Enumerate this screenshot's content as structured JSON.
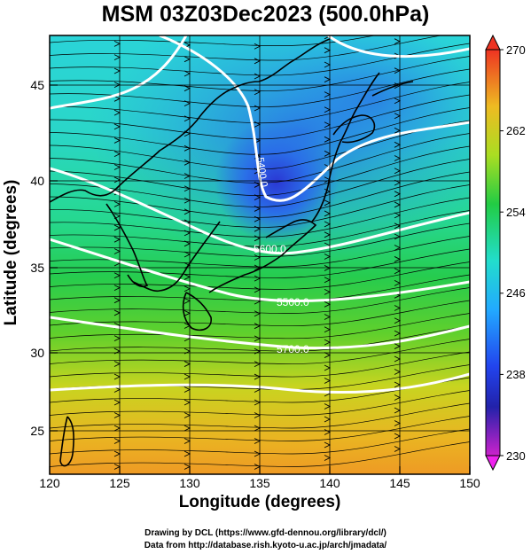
{
  "title": "MSM 03Z03Dec2023 (500.0hPa)",
  "xlabel": "Longitude (degrees)",
  "ylabel": "Latitude  (degrees)",
  "x_ticks": [
    "120",
    "125",
    "130",
    "135",
    "140",
    "145",
    "150"
  ],
  "y_ticks": [
    "25",
    "30",
    "35",
    "40",
    "45"
  ],
  "colorbar": {
    "ticks": [
      "230",
      "238",
      "246",
      "254",
      "262",
      "270"
    ],
    "min": 230,
    "max": 270
  },
  "contour_labels": [
    "5400.0",
    "5600.0",
    "5800.0",
    "5700.0",
    "5500.0"
  ],
  "credits": {
    "line1": "Drawing by DCL (https://www.gfd-dennou.org/library/dcl/)",
    "line2": "Data from http://database.rish.kyoto-u.ac.jp/arch/jmadata/"
  },
  "chart_data": {
    "type": "map",
    "variable": "temperature (shaded) with geopotential height contours and wind streamlines",
    "level_hPa": 500.0,
    "valid_time": "03Z03Dec2023",
    "xlim": [
      120,
      150
    ],
    "ylim": [
      22.4,
      47.6
    ],
    "colorbar_range": [
      230,
      270
    ],
    "colors": {
      "cold": "#2a3fd8",
      "cool": "#2ad0e0",
      "mid": "#26c85a",
      "warm": "#d8d81e",
      "hot": "#ee9a24"
    }
  }
}
